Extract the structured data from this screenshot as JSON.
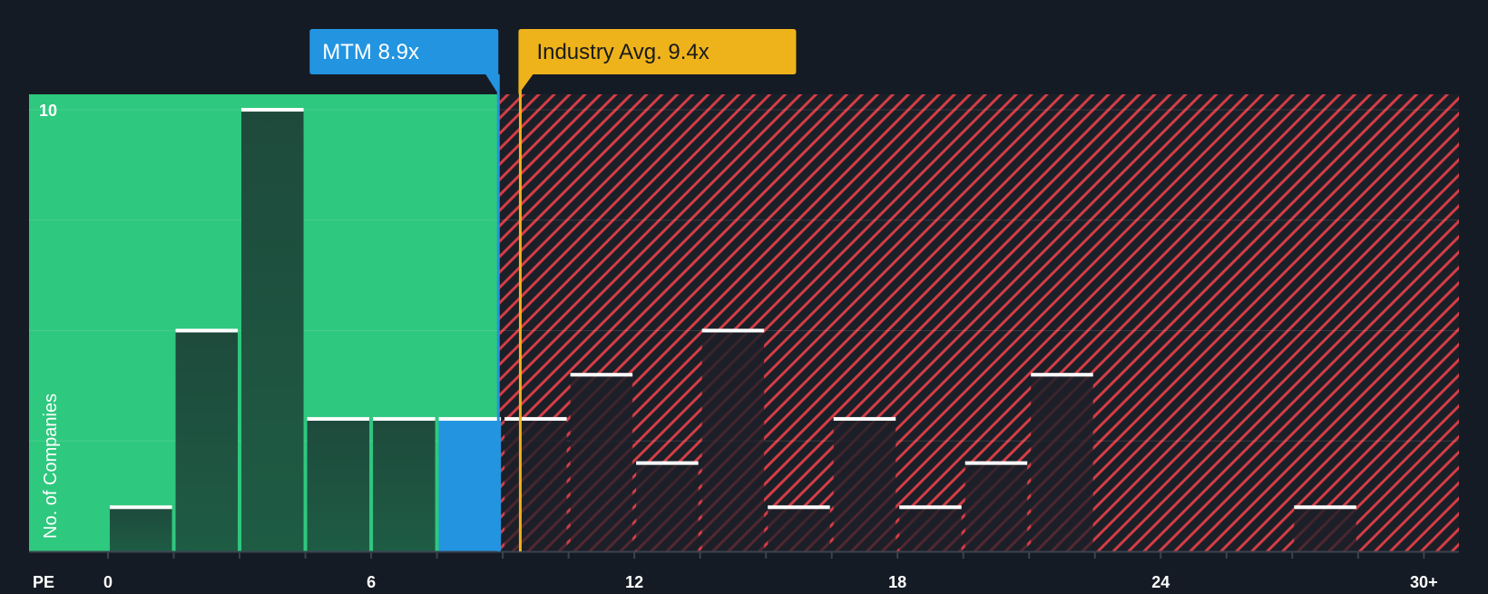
{
  "chart_data": {
    "type": "bar",
    "title": "",
    "xlabel": "PE",
    "ylabel": "No. of Companies",
    "x_axis_label": "PE",
    "y_axis_title": "No. of Companies",
    "xlim": [
      -1.8,
      30.8
    ],
    "ylim": [
      0,
      10.35
    ],
    "x_ticks": [
      0,
      6,
      12,
      18,
      24,
      30
    ],
    "x_tick_labels": [
      "0",
      "6",
      "12",
      "18",
      "24",
      "30+"
    ],
    "y_ticks": [
      10
    ],
    "y_tick_labels": [
      "10"
    ],
    "bin_width": 1.5,
    "bins": [
      {
        "start": 0.0,
        "count": 1
      },
      {
        "start": 1.5,
        "count": 5
      },
      {
        "start": 3.0,
        "count": 10
      },
      {
        "start": 4.5,
        "count": 3
      },
      {
        "start": 6.0,
        "count": 3
      },
      {
        "start": 7.5,
        "count": 3
      },
      {
        "start": 9.0,
        "count": 3
      },
      {
        "start": 10.5,
        "count": 4
      },
      {
        "start": 12.0,
        "count": 2
      },
      {
        "start": 13.5,
        "count": 5
      },
      {
        "start": 15.0,
        "count": 1
      },
      {
        "start": 16.5,
        "count": 3
      },
      {
        "start": 18.0,
        "count": 1
      },
      {
        "start": 19.5,
        "count": 2
      },
      {
        "start": 21.0,
        "count": 4
      },
      {
        "start": 22.5,
        "count": 0
      },
      {
        "start": 24.0,
        "count": 0
      },
      {
        "start": 25.5,
        "count": 0
      },
      {
        "start": 27.0,
        "count": 1
      }
    ],
    "company": {
      "name": "MTM",
      "value": 8.9,
      "label": "MTM 8.9x"
    },
    "industry_avg": {
      "value": 9.4,
      "label": "Industry Avg. 9.4x"
    },
    "colors": {
      "background": "#151b24",
      "undervalued_region": "#2ec87e",
      "overvalued_hatch": "#d43d45",
      "bar_under": "#1e4a3c",
      "bar_over": "#1d1f28",
      "highlight_bar": "#2394e0",
      "bar_cap": "#ffffff",
      "company_callout": "#2394e0",
      "industry_callout": "#eeb31b",
      "axis": "#3a4350",
      "text": "#ffffff"
    }
  }
}
